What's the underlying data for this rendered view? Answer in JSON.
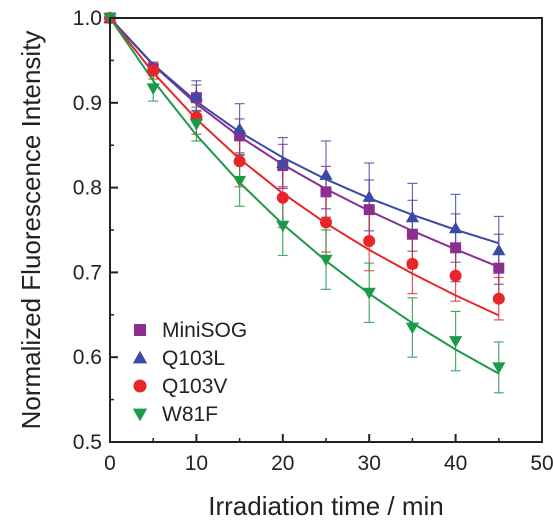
{
  "chart_data": {
    "type": "scatter",
    "xlabel": "Irradiation time / min",
    "ylabel": "Normalized Fluorescence Intensity",
    "xlim": [
      0,
      50
    ],
    "ylim": [
      0.5,
      1.0
    ],
    "xticks": [
      0,
      10,
      20,
      30,
      40,
      50
    ],
    "yticks": [
      0.5,
      0.6,
      0.7,
      0.8,
      0.9,
      1.0
    ],
    "xtick_labels": [
      "0",
      "10",
      "20",
      "30",
      "40",
      "50"
    ],
    "ytick_labels": [
      "0.5",
      "0.6",
      "0.7",
      "0.8",
      "0.9",
      "1.0"
    ],
    "grid": false,
    "legend_position": "bottom-left",
    "x": [
      0,
      5,
      10,
      15,
      20,
      25,
      30,
      35,
      40,
      45
    ],
    "series": [
      {
        "name": "MiniSOG",
        "color": "#8b2e8f",
        "marker": "square",
        "values": [
          1.0,
          0.94,
          0.906,
          0.861,
          0.826,
          0.795,
          0.774,
          0.745,
          0.729,
          0.705
        ],
        "errors": [
          0,
          0.005,
          0.015,
          0.02,
          0.025,
          0.03,
          0.035,
          0.04,
          0.04,
          0.04
        ],
        "fit": [
          1.0,
          0.9445,
          0.8986,
          0.8602,
          0.8272,
          0.7984,
          0.7726,
          0.749,
          0.7272,
          0.7065
        ]
      },
      {
        "name": "Q103L",
        "color": "#3b4aa4",
        "marker": "triangle-up",
        "values": [
          1.0,
          0.941,
          0.908,
          0.869,
          0.829,
          0.815,
          0.789,
          0.765,
          0.752,
          0.726
        ],
        "errors": [
          0,
          0.006,
          0.018,
          0.03,
          0.03,
          0.04,
          0.04,
          0.04,
          0.04,
          0.04
        ],
        "fit": [
          1.0,
          0.9453,
          0.9015,
          0.8656,
          0.8355,
          0.8098,
          0.7875,
          0.7679,
          0.7503,
          0.7344
        ]
      },
      {
        "name": "Q103V",
        "color": "#e8262a",
        "marker": "circle",
        "values": [
          1.0,
          0.938,
          0.883,
          0.831,
          0.788,
          0.759,
          0.737,
          0.71,
          0.696,
          0.669
        ],
        "errors": [
          0,
          0.01,
          0.02,
          0.03,
          0.035,
          0.035,
          0.035,
          0.035,
          0.03,
          0.025
        ],
        "fit": [
          1.0,
          0.9355,
          0.8808,
          0.8339,
          0.7933,
          0.7579,
          0.7266,
          0.6985,
          0.6729,
          0.6493
        ]
      },
      {
        "name": "W81F",
        "color": "#1b9a48",
        "marker": "triangle-down",
        "values": [
          1.0,
          0.917,
          0.875,
          0.808,
          0.755,
          0.715,
          0.676,
          0.635,
          0.619,
          0.588
        ],
        "errors": [
          0,
          0.015,
          0.02,
          0.03,
          0.035,
          0.035,
          0.035,
          0.035,
          0.035,
          0.03
        ],
        "fit": [
          1.0,
          0.9261,
          0.8619,
          0.8059,
          0.7568,
          0.7135,
          0.6749,
          0.6403,
          0.6091,
          0.5806
        ]
      }
    ]
  }
}
